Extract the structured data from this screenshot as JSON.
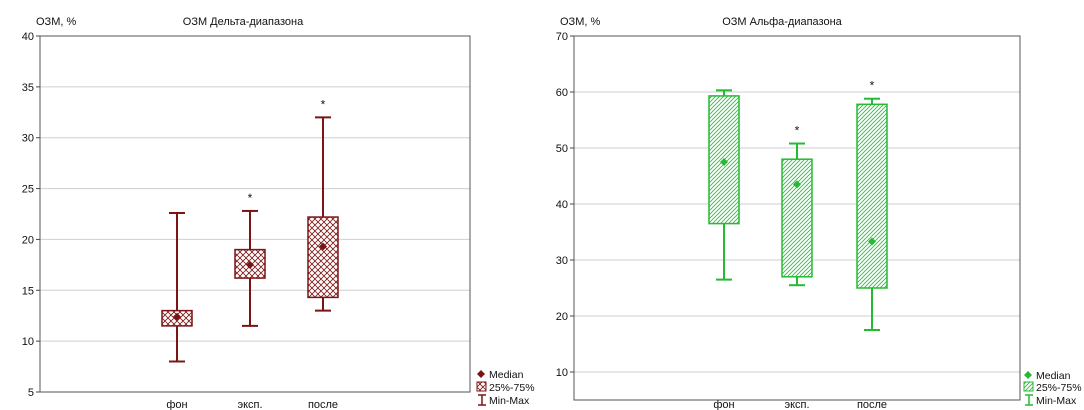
{
  "chart_data": [
    {
      "type": "boxplot",
      "title": "ОЗМ Дельта-диапазона",
      "ylabel": "ОЗМ, %",
      "ylim": [
        5,
        40
      ],
      "yticks": [
        5,
        10,
        15,
        20,
        25,
        30,
        35,
        40
      ],
      "grid": true,
      "color": "#7b1515",
      "hatch": "crosshatch",
      "categories": [
        "фон",
        "эксп.",
        "после"
      ],
      "boxes": [
        {
          "median": 12.4,
          "q1": 11.5,
          "q3": 13.0,
          "min": 8.0,
          "max": 22.6,
          "mark": ""
        },
        {
          "median": 17.5,
          "q1": 16.2,
          "q3": 19.0,
          "min": 11.5,
          "max": 22.8,
          "mark": "*"
        },
        {
          "median": 19.3,
          "q1": 14.3,
          "q3": 22.2,
          "min": 13.0,
          "max": 32.0,
          "mark": "*"
        }
      ],
      "legend": {
        "position": "bottom-right",
        "items": [
          "Median",
          "25%-75%",
          "Min-Max"
        ]
      }
    },
    {
      "type": "boxplot",
      "title": "ОЗМ Альфа-диапазона",
      "ylabel": "ОЗМ, %",
      "ylim": [
        5,
        70
      ],
      "yticks": [
        10,
        20,
        30,
        40,
        50,
        60,
        70
      ],
      "grid": true,
      "color": "#22bb33",
      "hatch": "diagonal",
      "categories": [
        "фон",
        "эксп.",
        "после"
      ],
      "boxes": [
        {
          "median": 47.5,
          "q1": 36.5,
          "q3": 59.3,
          "min": 26.5,
          "max": 60.3,
          "mark": ""
        },
        {
          "median": 43.5,
          "q1": 27.0,
          "q3": 48.0,
          "min": 25.5,
          "max": 50.8,
          "mark": "*"
        },
        {
          "median": 33.3,
          "q1": 25.0,
          "q3": 57.8,
          "min": 17.5,
          "max": 58.8,
          "mark": "*"
        }
      ],
      "legend": {
        "position": "bottom-right",
        "items": [
          "Median",
          "25%-75%",
          "Min-Max"
        ]
      }
    }
  ]
}
